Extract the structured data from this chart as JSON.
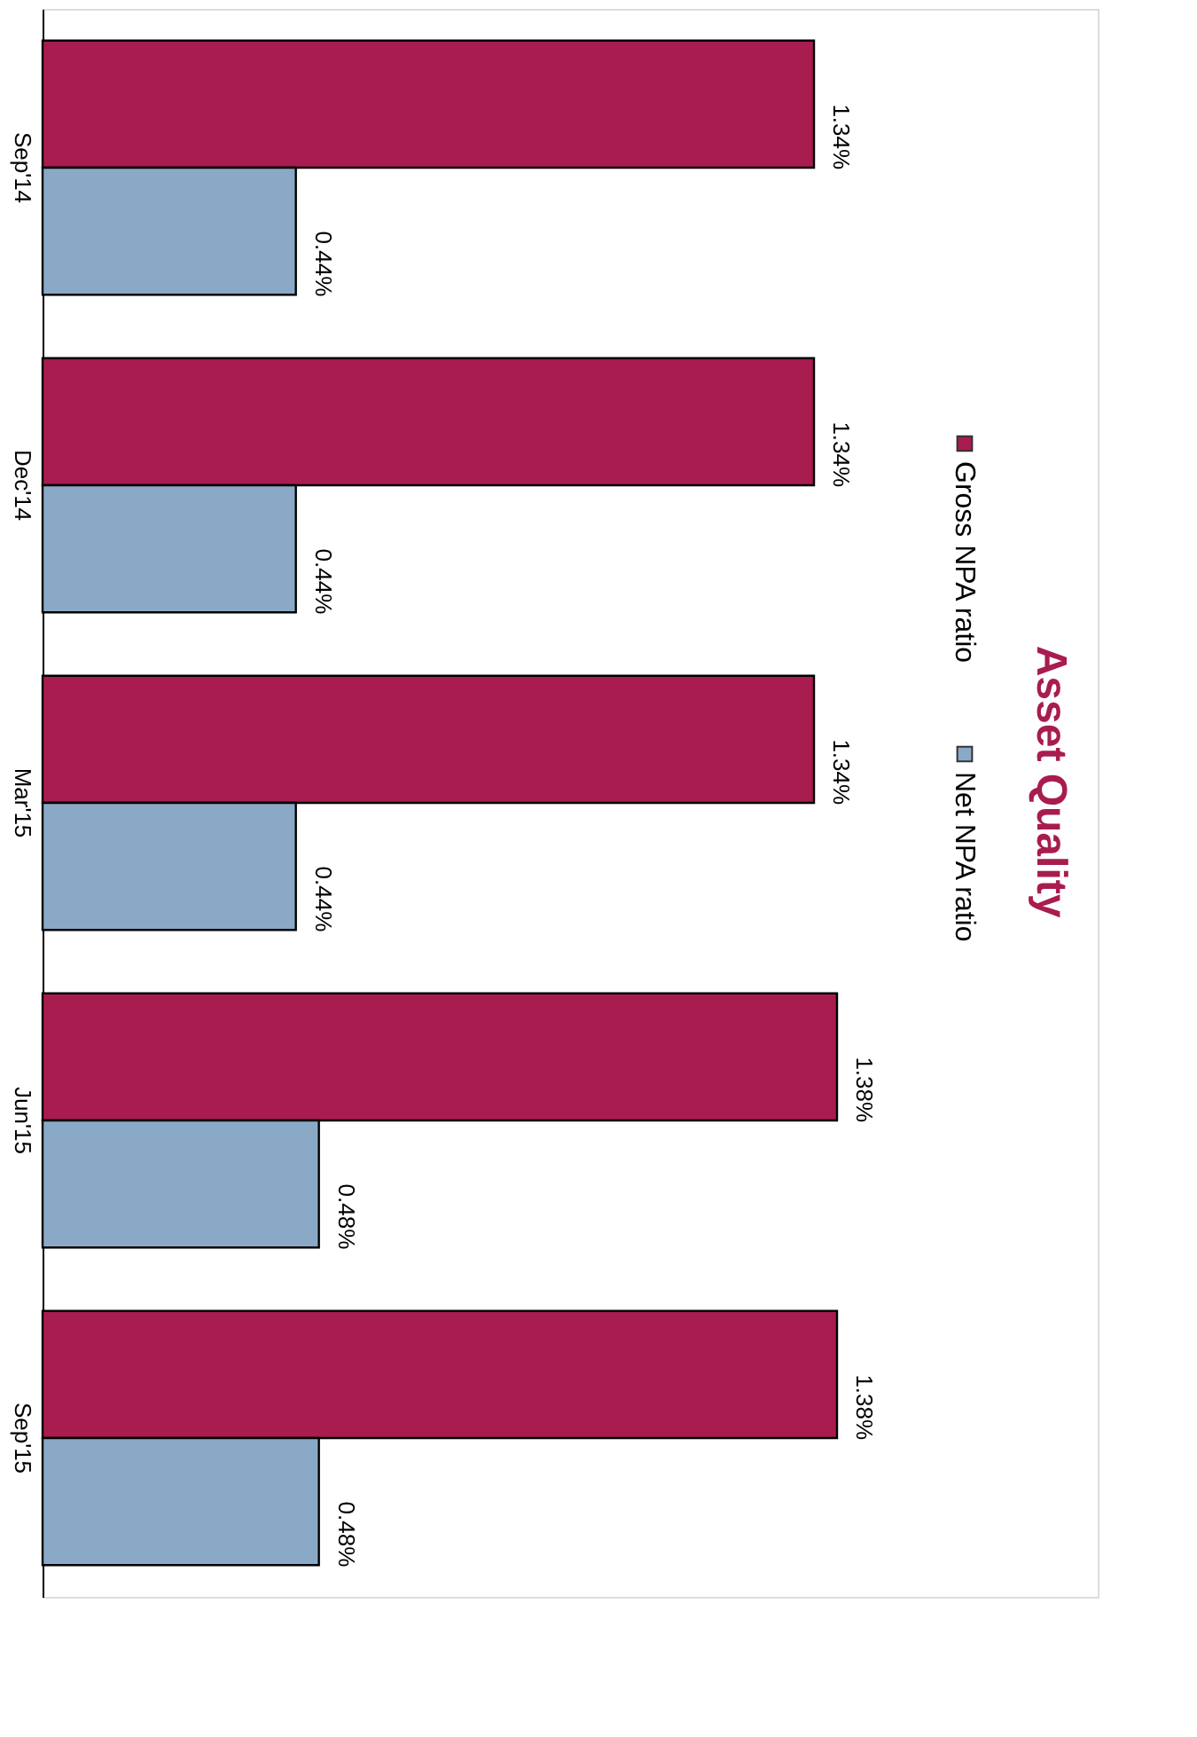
{
  "chart_data": {
    "type": "bar",
    "orientation": "horizontal",
    "title": "Asset Quality",
    "categories": [
      "Sep'14",
      "Dec'14",
      "Mar'15",
      "Jun'15",
      "Sep'15"
    ],
    "series": [
      {
        "name": "Gross NPA ratio",
        "color": "#a81c4f",
        "values": [
          1.34,
          1.34,
          1.34,
          1.38,
          1.38
        ],
        "value_labels": [
          "1.34%",
          "1.34%",
          "1.34%",
          "1.38%",
          "1.38%"
        ]
      },
      {
        "name": "Net NPA ratio",
        "color": "#8aa9c6",
        "values": [
          0.44,
          0.44,
          0.44,
          0.48,
          0.48
        ],
        "value_labels": [
          "0.44%",
          "0.44%",
          "0.44%",
          "0.48%",
          "0.48%"
        ]
      }
    ],
    "legend": "right",
    "grid": false
  }
}
